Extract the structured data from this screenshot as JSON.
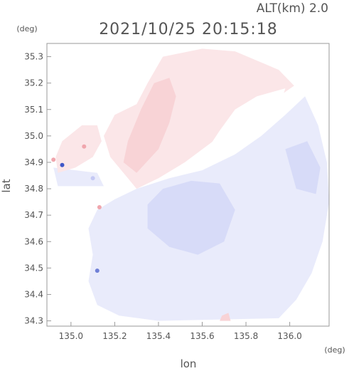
{
  "chart_data": {
    "type": "heatmap",
    "title": "2021/10/25 20:15:18",
    "altitude_label": "ALT(km)  2.0",
    "xlabel": "lon",
    "ylabel": "lat",
    "x_unit": "(deg)",
    "y_unit": "(deg)",
    "xlim": [
      134.89,
      136.18
    ],
    "ylim": [
      34.28,
      35.35
    ],
    "x_ticks": [
      135.0,
      135.2,
      135.4,
      135.6,
      135.8,
      136.0
    ],
    "y_ticks": [
      34.3,
      34.4,
      34.5,
      34.6,
      34.7,
      34.8,
      34.9,
      35.0,
      35.1,
      35.2,
      35.3
    ],
    "x_tick_labels": [
      "135.0",
      "135.2",
      "135.4",
      "135.6",
      "135.8",
      "136.0"
    ],
    "y_tick_labels": [
      "34.3",
      "34.4",
      "34.5",
      "34.6",
      "34.7",
      "34.8",
      "34.9",
      "35.0",
      "35.1",
      "35.2",
      "35.3"
    ],
    "grid": false,
    "colors": {
      "toward_light": "#e9ebfb",
      "toward_mid": "#d7dbf8",
      "toward_strong": "#c4c9f4",
      "away_light": "#fbe6e8",
      "away_mid": "#f8d3d6",
      "away_strong": "#f0a6ad",
      "frame": "#9a9a9a",
      "text": "#555555"
    },
    "regions": [
      {
        "name": "blue-main",
        "color": "toward_light",
        "points": [
          [
            135.3,
            34.8
          ],
          [
            135.45,
            34.84
          ],
          [
            135.6,
            34.87
          ],
          [
            135.75,
            34.93
          ],
          [
            135.87,
            35.0
          ],
          [
            135.98,
            35.08
          ],
          [
            136.07,
            35.15
          ],
          [
            136.13,
            35.04
          ],
          [
            136.17,
            34.9
          ],
          [
            136.18,
            34.75
          ],
          [
            136.15,
            34.6
          ],
          [
            136.1,
            34.48
          ],
          [
            136.03,
            34.38
          ],
          [
            135.95,
            34.31
          ],
          [
            135.4,
            34.3
          ],
          [
            135.22,
            34.32
          ],
          [
            135.12,
            34.36
          ],
          [
            135.08,
            34.45
          ],
          [
            135.1,
            34.55
          ],
          [
            135.08,
            34.65
          ],
          [
            135.12,
            34.72
          ],
          [
            135.2,
            34.76
          ]
        ]
      },
      {
        "name": "blue-core",
        "color": "toward_mid",
        "points": [
          [
            135.42,
            34.8
          ],
          [
            135.55,
            34.83
          ],
          [
            135.68,
            34.82
          ],
          [
            135.75,
            34.72
          ],
          [
            135.7,
            34.6
          ],
          [
            135.58,
            34.55
          ],
          [
            135.45,
            34.58
          ],
          [
            135.35,
            34.65
          ],
          [
            135.35,
            34.74
          ]
        ]
      },
      {
        "name": "blue-core-east",
        "color": "toward_mid",
        "points": [
          [
            135.98,
            34.95
          ],
          [
            136.08,
            34.98
          ],
          [
            136.14,
            34.88
          ],
          [
            136.12,
            34.78
          ],
          [
            136.03,
            34.8
          ]
        ]
      },
      {
        "name": "blue-west-strip",
        "color": "toward_light",
        "points": [
          [
            134.92,
            34.88
          ],
          [
            135.12,
            34.86
          ],
          [
            135.15,
            34.81
          ],
          [
            134.94,
            34.81
          ]
        ]
      },
      {
        "name": "red-north",
        "color": "away_light",
        "points": [
          [
            135.35,
            35.2
          ],
          [
            135.42,
            35.3
          ],
          [
            135.6,
            35.33
          ],
          [
            135.75,
            35.32
          ],
          [
            135.95,
            35.25
          ],
          [
            136.02,
            35.19
          ],
          [
            135.9,
            35.12
          ],
          [
            135.8,
            35.05
          ],
          [
            135.65,
            34.98
          ],
          [
            135.52,
            34.9
          ],
          [
            135.4,
            34.84
          ],
          [
            135.3,
            34.8
          ],
          [
            135.25,
            34.85
          ],
          [
            135.18,
            34.92
          ],
          [
            135.15,
            35.0
          ],
          [
            135.2,
            35.08
          ],
          [
            135.3,
            35.12
          ]
        ]
      },
      {
        "name": "red-core",
        "color": "away_mid",
        "points": [
          [
            135.3,
            34.86
          ],
          [
            135.4,
            34.95
          ],
          [
            135.45,
            35.05
          ],
          [
            135.48,
            35.15
          ],
          [
            135.45,
            35.22
          ],
          [
            135.38,
            35.2
          ],
          [
            135.32,
            35.1
          ],
          [
            135.26,
            34.98
          ],
          [
            135.24,
            34.9
          ]
        ]
      },
      {
        "name": "red-west",
        "color": "away_light",
        "points": [
          [
            134.94,
            34.86
          ],
          [
            135.02,
            34.88
          ],
          [
            135.1,
            34.92
          ],
          [
            135.14,
            34.98
          ],
          [
            135.12,
            35.04
          ],
          [
            135.05,
            35.04
          ],
          [
            134.96,
            34.98
          ],
          [
            134.93,
            34.92
          ]
        ]
      },
      {
        "name": "red-south-speck",
        "color": "away_mid",
        "points": [
          [
            135.68,
            34.3
          ],
          [
            135.73,
            34.3
          ],
          [
            135.72,
            34.33
          ],
          [
            135.69,
            34.32
          ]
        ]
      },
      {
        "name": "clear-gap",
        "color": "white",
        "points": [
          [
            135.75,
            35.1
          ],
          [
            135.85,
            35.15
          ],
          [
            135.98,
            35.18
          ],
          [
            135.93,
            35.05
          ],
          [
            135.8,
            34.98
          ],
          [
            135.7,
            34.92
          ],
          [
            135.6,
            34.88
          ],
          [
            135.5,
            34.86
          ],
          [
            135.6,
            34.92
          ],
          [
            135.68,
            35.02
          ]
        ]
      }
    ],
    "echo_spots": [
      {
        "lon": 134.92,
        "lat": 34.91,
        "color": "away_strong"
      },
      {
        "lon": 134.96,
        "lat": 34.89,
        "color": "#3f57c8"
      },
      {
        "lon": 135.06,
        "lat": 34.96,
        "color": "away_strong"
      },
      {
        "lon": 135.13,
        "lat": 34.73,
        "color": "away_strong"
      },
      {
        "lon": 135.1,
        "lat": 34.84,
        "color": "toward_strong"
      },
      {
        "lon": 135.12,
        "lat": 34.49,
        "color": "#6f7fd6"
      }
    ]
  }
}
